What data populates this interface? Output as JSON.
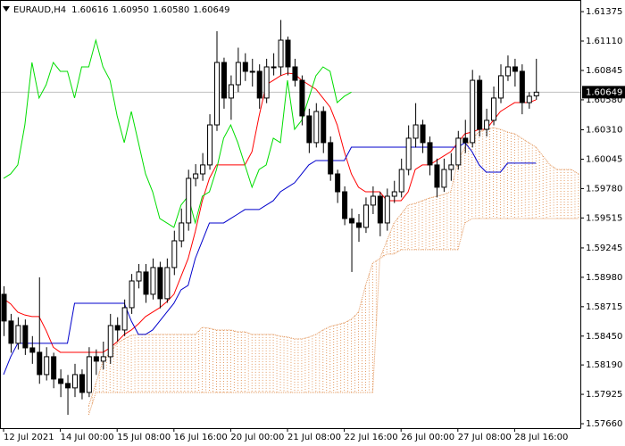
{
  "chart_data": {
    "type": "candlestick",
    "title": "EURAUD,H4",
    "header_prices": [
      "1.60616",
      "1.60950",
      "1.60580",
      "1.60649"
    ],
    "categories": [
      "12 Jul 2021",
      null,
      null,
      null,
      null,
      null,
      null,
      null,
      "14 Jul 00:00",
      null,
      null,
      null,
      null,
      null,
      null,
      null,
      "15 Jul 08:00",
      null,
      null,
      null,
      null,
      null,
      null,
      null,
      "16 Jul 16:00",
      null,
      null,
      null,
      null,
      null,
      null,
      null,
      "20 Jul 00:00",
      null,
      null,
      null,
      null,
      null,
      null,
      null,
      "21 Jul 08:00",
      null,
      null,
      null,
      null,
      null,
      null,
      null,
      "22 Jul 16:00",
      null,
      null,
      null,
      null,
      null,
      null,
      null,
      "26 Jul 00:00",
      null,
      null,
      null,
      null,
      null,
      null,
      null,
      "27 Jul 08:00",
      null,
      null,
      null,
      null,
      null,
      null,
      null,
      "28 Jul 16:00",
      null,
      null,
      null,
      null,
      null,
      null,
      null,
      null,
      null
    ],
    "open": [
      1.58827,
      1.58586,
      1.58385,
      1.58545,
      1.58344,
      1.58304,
      1.58103,
      1.58264,
      1.58063,
      1.58023,
      1.57983,
      1.58103,
      1.57942,
      1.58264,
      1.58224,
      1.58264,
      1.58545,
      1.58505,
      1.58706,
      1.58947,
      1.59028,
      1.58827,
      1.59068,
      1.58787,
      1.59068,
      1.59309,
      1.5947,
      1.59872,
      1.59912,
      1.59993,
      1.60354,
      1.60917,
      1.60596,
      1.60716,
      1.60917,
      1.60837,
      1.60837,
      1.60596,
      1.60877,
      1.60877,
      1.61118,
      1.60877,
      1.60756,
      1.60435,
      1.60194,
      1.60475,
      1.60194,
      1.59912,
      1.59751,
      1.5951,
      1.5947,
      1.5943,
      1.59631,
      1.59711,
      1.5947,
      1.59711,
      1.59751,
      1.59952,
      1.60234,
      1.60354,
      1.60194,
      1.59993,
      1.59792,
      1.59952,
      1.59993,
      1.60234,
      1.60194,
      1.60756,
      1.60314,
      1.60395,
      1.60596,
      1.60797,
      1.60877,
      1.60837,
      1.60555,
      1.60616,
      null,
      null,
      null,
      null,
      null,
      null
    ],
    "high": [
      1.589,
      1.5865,
      1.5862,
      1.586,
      1.5845,
      1.5898,
      1.5835,
      1.583,
      1.5815,
      1.581,
      1.582,
      1.5815,
      1.5835,
      1.5833,
      1.584,
      1.5865,
      1.5862,
      1.5878,
      1.5901,
      1.591,
      1.591,
      1.5915,
      1.5912,
      1.5915,
      1.594,
      1.596,
      1.5995,
      1.6,
      1.601,
      1.6045,
      1.61199,
      1.6096,
      1.608,
      1.6105,
      1.61,
      1.6095,
      1.609,
      1.6095,
      1.61,
      1.613,
      1.6115,
      1.6095,
      1.608,
      1.605,
      1.6055,
      1.6052,
      1.6025,
      1.5995,
      1.598,
      1.596,
      1.5955,
      1.597,
      1.598,
      1.5975,
      1.5978,
      1.5985,
      1.6005,
      1.6035,
      1.6055,
      1.604,
      1.6025,
      1.6005,
      1.6005,
      1.601,
      1.603,
      1.604,
      1.6085,
      1.608,
      1.605,
      1.607,
      1.609,
      1.6098,
      1.6095,
      1.609,
      1.6065,
      1.6095,
      null,
      null,
      null,
      null,
      null,
      null
    ],
    "low": [
      1.5845,
      1.583,
      1.5833,
      1.5828,
      1.582,
      1.5802,
      1.5805,
      1.5798,
      1.579,
      1.5774,
      1.579,
      1.5788,
      1.579,
      1.581,
      1.5815,
      1.582,
      1.584,
      1.5845,
      1.5865,
      1.5888,
      1.5875,
      1.5878,
      1.587,
      1.5875,
      1.59,
      1.5925,
      1.594,
      1.598,
      1.5985,
      1.5995,
      1.603,
      1.605,
      1.604,
      1.6065,
      1.6075,
      1.607,
      1.605,
      1.6055,
      1.608,
      1.608,
      1.608,
      1.607,
      1.6035,
      1.601,
      1.6015,
      1.601,
      1.5985,
      1.5965,
      1.5945,
      1.59028,
      1.593,
      1.5938,
      1.5955,
      1.5935,
      1.594,
      1.5965,
      1.597,
      1.599,
      1.6015,
      1.601,
      1.599,
      1.597,
      1.5975,
      1.5985,
      1.5995,
      1.601,
      1.6015,
      1.6025,
      1.6025,
      1.6035,
      1.6055,
      1.6075,
      1.607,
      1.6045,
      1.605,
      1.6058,
      null,
      null,
      null,
      null,
      null,
      null
    ],
    "close": [
      1.58586,
      1.58385,
      1.58545,
      1.58344,
      1.58304,
      1.58103,
      1.58264,
      1.58063,
      1.58023,
      1.57983,
      1.58103,
      1.57942,
      1.58264,
      1.58224,
      1.58264,
      1.58545,
      1.58505,
      1.58706,
      1.58947,
      1.59028,
      1.58827,
      1.59068,
      1.58787,
      1.59068,
      1.59309,
      1.5947,
      1.59872,
      1.59912,
      1.59993,
      1.60354,
      1.60917,
      1.60596,
      1.60716,
      1.60917,
      1.60837,
      1.60837,
      1.60596,
      1.60877,
      1.60877,
      1.61118,
      1.60877,
      1.60756,
      1.60435,
      1.60194,
      1.60475,
      1.60194,
      1.59912,
      1.59751,
      1.5951,
      1.5947,
      1.5943,
      1.59631,
      1.59711,
      1.5947,
      1.59711,
      1.59751,
      1.59952,
      1.60234,
      1.60354,
      1.60194,
      1.59993,
      1.59792,
      1.59952,
      1.59993,
      1.60234,
      1.60194,
      1.60756,
      1.60314,
      1.60395,
      1.60596,
      1.60797,
      1.60877,
      1.60837,
      1.60555,
      1.60612,
      1.60649,
      null,
      null,
      null,
      null,
      null,
      null
    ],
    "bull_color": "#ffffff",
    "bear_color": "#000000",
    "outline_color": "#000000",
    "overlays": [
      {
        "color": "#ff0000",
        "values": [
          1.58787,
          1.5874,
          1.58666,
          1.5864,
          1.58626,
          1.58626,
          1.585,
          1.5835,
          1.58304,
          1.58304,
          1.58304,
          1.58304,
          1.58304,
          1.58304,
          1.58304,
          1.58344,
          1.584,
          1.58465,
          1.58505,
          1.5856,
          1.58626,
          1.58666,
          1.58706,
          1.5876,
          1.58827,
          1.58988,
          1.59148,
          1.5939,
          1.59671,
          1.59872,
          1.59993,
          1.59993,
          1.59993,
          1.59993,
          1.59993,
          1.60113,
          1.60435,
          1.60716,
          1.60756,
          1.60797,
          1.60821,
          1.60813,
          1.60756,
          1.60716,
          1.60676,
          1.60596,
          1.60515,
          1.60354,
          1.60113,
          1.59912,
          1.59792,
          1.59751,
          1.59751,
          1.59751,
          1.59671,
          1.59671,
          1.59671,
          1.59751,
          1.59952,
          1.59993,
          1.59993,
          1.60033,
          1.60073,
          1.60113,
          1.60194,
          1.60274,
          1.6029,
          1.60314,
          1.60314,
          1.60395,
          1.60475,
          1.60515,
          1.60555,
          1.60555,
          1.60555,
          1.6058,
          null,
          null,
          null,
          null,
          null,
          null
        ]
      },
      {
        "color": "#0000cc",
        "values": [
          1.58103,
          1.58264,
          1.58385,
          1.58385,
          1.58385,
          1.58385,
          1.58385,
          1.58385,
          1.58385,
          1.58385,
          1.58746,
          1.58746,
          1.58746,
          1.58746,
          1.58746,
          1.58746,
          1.58746,
          1.58746,
          1.58586,
          1.58465,
          1.58465,
          1.58505,
          1.58586,
          1.58666,
          1.58746,
          1.58867,
          1.58907,
          1.59148,
          1.59309,
          1.5947,
          1.5947,
          1.5947,
          1.5951,
          1.5955,
          1.59591,
          1.59591,
          1.59591,
          1.59631,
          1.59671,
          1.59751,
          1.59792,
          1.59832,
          1.59912,
          1.59993,
          1.60033,
          1.60033,
          1.60033,
          1.60033,
          1.60033,
          1.60153,
          1.60153,
          1.60153,
          1.60153,
          1.60153,
          1.60153,
          1.60153,
          1.60153,
          1.60153,
          1.60153,
          1.60153,
          1.60153,
          1.60153,
          1.60153,
          1.60153,
          1.60153,
          1.60194,
          1.60113,
          1.59993,
          1.59928,
          1.59928,
          1.59928,
          1.60009,
          1.60009,
          1.60009,
          1.60009,
          1.60009,
          null,
          null,
          null,
          null,
          null,
          null
        ]
      },
      {
        "color": "#00dd00",
        "values": [
          1.59872,
          1.59912,
          1.59993,
          1.60354,
          1.60917,
          1.60596,
          1.60716,
          1.60917,
          1.60837,
          1.60837,
          1.60596,
          1.60877,
          1.60877,
          1.61118,
          1.60877,
          1.60756,
          1.60435,
          1.60194,
          1.60475,
          1.60194,
          1.59912,
          1.59751,
          1.5951,
          1.5947,
          1.5943,
          1.59631,
          1.59711,
          1.5947,
          1.59711,
          1.59751,
          1.59952,
          1.60234,
          1.60354,
          1.60194,
          1.59993,
          1.59792,
          1.59952,
          1.59993,
          1.60234,
          1.60194,
          1.60756,
          1.60314,
          1.60395,
          1.60596,
          1.60797,
          1.60877,
          1.60837,
          1.60555,
          1.60612,
          1.60649,
          null,
          null,
          null,
          null,
          null,
          null,
          null,
          null,
          null,
          null,
          null,
          null,
          null,
          null,
          null,
          null,
          null,
          null,
          null,
          null,
          null,
          null,
          null,
          null,
          null,
          null,
          null,
          null,
          null,
          null,
          null,
          null
        ]
      }
    ],
    "cloud": {
      "color": "#e39a62",
      "span_a": [
        null,
        null,
        null,
        null,
        null,
        null,
        null,
        null,
        null,
        null,
        null,
        null,
        1.57822,
        1.58023,
        1.58224,
        1.58304,
        1.58385,
        1.58425,
        1.58457,
        1.58465,
        1.58465,
        1.58465,
        1.58465,
        1.58465,
        1.58465,
        1.58465,
        1.58465,
        1.58465,
        1.58529,
        1.58521,
        1.58505,
        1.58505,
        1.58505,
        1.58489,
        1.58489,
        1.58465,
        1.58465,
        1.58465,
        1.58465,
        1.58449,
        1.58441,
        1.58425,
        1.58425,
        1.58441,
        1.58465,
        1.58505,
        1.58537,
        1.58553,
        1.5857,
        1.58602,
        1.58666,
        1.58907,
        1.59108,
        1.59148,
        1.59309,
        1.5947,
        1.5955,
        1.59631,
        1.59647,
        1.59671,
        1.59695,
        1.59711,
        1.59727,
        1.59751,
        1.60033,
        1.60153,
        1.60234,
        1.6029,
        1.60314,
        1.6033,
        1.60314,
        1.6029,
        1.60274,
        1.60234,
        1.60194,
        1.60153,
        1.60073,
        1.59993,
        1.59952,
        1.59952,
        1.59952,
        1.59912
      ],
      "span_b": [
        null,
        null,
        null,
        null,
        null,
        null,
        null,
        null,
        null,
        null,
        null,
        null,
        1.57741,
        1.57942,
        1.57942,
        1.57942,
        1.57942,
        1.57942,
        1.57942,
        1.57942,
        1.57942,
        1.57942,
        1.57942,
        1.57942,
        1.57942,
        1.57942,
        1.57942,
        1.57942,
        1.57942,
        1.57942,
        1.57942,
        1.57942,
        1.57942,
        1.57942,
        1.57942,
        1.57942,
        1.57942,
        1.57942,
        1.57942,
        1.57942,
        1.57942,
        1.57942,
        1.57942,
        1.57942,
        1.57942,
        1.57942,
        1.57942,
        1.57942,
        1.57942,
        1.57942,
        1.57942,
        1.57942,
        1.57942,
        1.59148,
        1.59189,
        1.59189,
        1.59229,
        1.59229,
        1.59229,
        1.59229,
        1.59229,
        1.59229,
        1.59229,
        1.59229,
        1.59229,
        1.5947,
        1.5951,
        1.5951,
        1.5951,
        1.5951,
        1.5951,
        1.5951,
        1.5951,
        1.5951,
        1.5951,
        1.5951,
        1.5951,
        1.5951,
        1.5951,
        1.5951,
        1.5951,
        1.5951
      ]
    },
    "current_price": {
      "value": 1.60649,
      "label": "1.60649"
    },
    "ylim": [
      1.5762,
      1.6148
    ],
    "yticks": [
      1.61375,
      {
        "value": 1.6111,
        "label": "1.61110"
      },
      1.60845,
      {
        "value": 1.6058,
        "label": "1.60580"
      },
      {
        "value": 1.6031,
        "label": "1.60310"
      },
      1.60045,
      {
        "value": 1.5978,
        "label": "1.59780"
      },
      1.59515,
      1.59245,
      {
        "value": 1.5898,
        "label": "1.58980"
      },
      1.58715,
      {
        "value": 1.5845,
        "label": "1.58450"
      },
      {
        "value": 1.5819,
        "label": "1.58190"
      },
      1.57925,
      {
        "value": 1.5766,
        "label": "1.57660"
      }
    ],
    "grid": false
  }
}
